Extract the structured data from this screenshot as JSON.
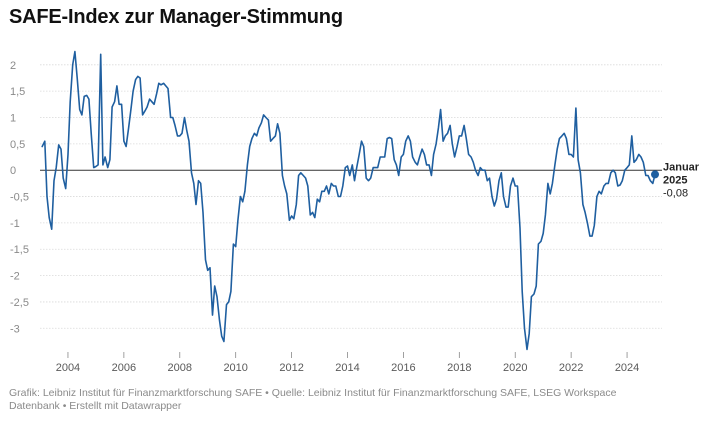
{
  "title": "SAFE-Index zur Manager-Stimmung",
  "footer": "Grafik: Leibniz Institut für Finanzmarktforschung SAFE • Quelle: Leibniz Institut für Finanzmarktforschung SAFE, LSEG Workspace Datenbank • Erstellt mit Datawrapper",
  "colors": {
    "line": "#1f5fa0",
    "grid": "#d9d9d9",
    "zero": "#333333",
    "text_muted": "#8a8a8a"
  },
  "annotation": {
    "month": "Januar",
    "year": "2025",
    "value": "-0,08"
  },
  "chart_data": {
    "type": "line",
    "title": "SAFE-Index zur Manager-Stimmung",
    "xlabel": "",
    "ylabel": "",
    "xlim": [
      2003.0,
      2025.25
    ],
    "ylim": [
      -3.45,
      2.3
    ],
    "x_ticks": [
      2004,
      2006,
      2008,
      2010,
      2012,
      2014,
      2016,
      2018,
      2020,
      2022,
      2024
    ],
    "x_tick_labels": [
      "2004",
      "2006",
      "2008",
      "2010",
      "2012",
      "2014",
      "2016",
      "2018",
      "2020",
      "2022",
      "2024"
    ],
    "y_ticks": [
      2,
      1.5,
      1,
      0.5,
      0,
      -0.5,
      -1,
      -1.5,
      -2,
      -2.5,
      -3
    ],
    "y_tick_labels": [
      "2",
      "1,5",
      "1",
      "0,5",
      "0",
      "-0,5",
      "-1",
      "-1,5",
      "-2",
      "-2,5",
      "-3"
    ],
    "grid": true,
    "series": [
      {
        "points": [
          [
            2003.08,
            0.45
          ],
          [
            2003.17,
            0.55
          ],
          [
            2003.25,
            -0.5
          ],
          [
            2003.33,
            -0.9
          ],
          [
            2003.42,
            -1.12
          ],
          [
            2003.5,
            -0.2
          ],
          [
            2003.58,
            0.05
          ],
          [
            2003.67,
            0.48
          ],
          [
            2003.75,
            0.4
          ],
          [
            2003.83,
            -0.15
          ],
          [
            2003.92,
            -0.35
          ],
          [
            2004.0,
            0.3
          ],
          [
            2004.08,
            1.3
          ],
          [
            2004.17,
            2.0
          ],
          [
            2004.25,
            2.25
          ],
          [
            2004.33,
            1.75
          ],
          [
            2004.42,
            1.15
          ],
          [
            2004.5,
            1.05
          ],
          [
            2004.58,
            1.4
          ],
          [
            2004.67,
            1.42
          ],
          [
            2004.75,
            1.35
          ],
          [
            2004.83,
            0.7
          ],
          [
            2004.92,
            0.05
          ],
          [
            2005.0,
            0.07
          ],
          [
            2005.08,
            0.1
          ],
          [
            2005.17,
            2.2
          ],
          [
            2005.25,
            0.1
          ],
          [
            2005.33,
            0.25
          ],
          [
            2005.42,
            0.05
          ],
          [
            2005.5,
            0.2
          ],
          [
            2005.58,
            1.2
          ],
          [
            2005.67,
            1.3
          ],
          [
            2005.75,
            1.6
          ],
          [
            2005.83,
            1.25
          ],
          [
            2005.92,
            1.25
          ],
          [
            2006.0,
            0.55
          ],
          [
            2006.08,
            0.45
          ],
          [
            2006.17,
            0.8
          ],
          [
            2006.25,
            1.15
          ],
          [
            2006.33,
            1.5
          ],
          [
            2006.42,
            1.72
          ],
          [
            2006.5,
            1.78
          ],
          [
            2006.58,
            1.75
          ],
          [
            2006.67,
            1.05
          ],
          [
            2006.75,
            1.12
          ],
          [
            2006.83,
            1.2
          ],
          [
            2006.92,
            1.35
          ],
          [
            2007.0,
            1.3
          ],
          [
            2007.08,
            1.25
          ],
          [
            2007.17,
            1.45
          ],
          [
            2007.25,
            1.65
          ],
          [
            2007.33,
            1.62
          ],
          [
            2007.42,
            1.65
          ],
          [
            2007.5,
            1.6
          ],
          [
            2007.58,
            1.55
          ],
          [
            2007.67,
            1.0
          ],
          [
            2007.75,
            1.0
          ],
          [
            2007.83,
            0.85
          ],
          [
            2007.92,
            0.65
          ],
          [
            2008.0,
            0.65
          ],
          [
            2008.08,
            0.7
          ],
          [
            2008.17,
            1.0
          ],
          [
            2008.25,
            0.75
          ],
          [
            2008.33,
            0.55
          ],
          [
            2008.42,
            -0.05
          ],
          [
            2008.5,
            -0.25
          ],
          [
            2008.58,
            -0.65
          ],
          [
            2008.67,
            -0.2
          ],
          [
            2008.75,
            -0.25
          ],
          [
            2008.83,
            -0.8
          ],
          [
            2008.92,
            -1.7
          ],
          [
            2009.0,
            -1.9
          ],
          [
            2009.08,
            -1.85
          ],
          [
            2009.17,
            -2.75
          ],
          [
            2009.25,
            -2.2
          ],
          [
            2009.33,
            -2.4
          ],
          [
            2009.42,
            -2.85
          ],
          [
            2009.5,
            -3.15
          ],
          [
            2009.58,
            -3.25
          ],
          [
            2009.67,
            -2.55
          ],
          [
            2009.75,
            -2.5
          ],
          [
            2009.83,
            -2.3
          ],
          [
            2009.92,
            -1.4
          ],
          [
            2010.0,
            -1.45
          ],
          [
            2010.08,
            -0.95
          ],
          [
            2010.17,
            -0.5
          ],
          [
            2010.25,
            -0.6
          ],
          [
            2010.33,
            -0.4
          ],
          [
            2010.42,
            0.1
          ],
          [
            2010.5,
            0.45
          ],
          [
            2010.58,
            0.6
          ],
          [
            2010.67,
            0.7
          ],
          [
            2010.75,
            0.65
          ],
          [
            2010.83,
            0.8
          ],
          [
            2010.92,
            0.9
          ],
          [
            2011.0,
            1.05
          ],
          [
            2011.08,
            1.0
          ],
          [
            2011.17,
            0.95
          ],
          [
            2011.25,
            0.55
          ],
          [
            2011.33,
            0.6
          ],
          [
            2011.42,
            0.65
          ],
          [
            2011.5,
            0.88
          ],
          [
            2011.58,
            0.7
          ],
          [
            2011.67,
            -0.1
          ],
          [
            2011.75,
            -0.3
          ],
          [
            2011.83,
            -0.45
          ],
          [
            2011.92,
            -0.95
          ],
          [
            2012.0,
            -0.87
          ],
          [
            2012.08,
            -0.92
          ],
          [
            2012.17,
            -0.65
          ],
          [
            2012.25,
            -0.1
          ],
          [
            2012.33,
            -0.05
          ],
          [
            2012.42,
            -0.1
          ],
          [
            2012.5,
            -0.15
          ],
          [
            2012.58,
            -0.3
          ],
          [
            2012.67,
            -0.85
          ],
          [
            2012.75,
            -0.8
          ],
          [
            2012.83,
            -0.9
          ],
          [
            2012.92,
            -0.55
          ],
          [
            2013.0,
            -0.6
          ],
          [
            2013.08,
            -0.4
          ],
          [
            2013.17,
            -0.4
          ],
          [
            2013.25,
            -0.3
          ],
          [
            2013.33,
            -0.45
          ],
          [
            2013.42,
            -0.25
          ],
          [
            2013.5,
            -0.3
          ],
          [
            2013.58,
            -0.3
          ],
          [
            2013.67,
            -0.5
          ],
          [
            2013.75,
            -0.5
          ],
          [
            2013.83,
            -0.3
          ],
          [
            2013.92,
            0.05
          ],
          [
            2014.0,
            0.08
          ],
          [
            2014.08,
            -0.1
          ],
          [
            2014.17,
            0.1
          ],
          [
            2014.25,
            -0.2
          ],
          [
            2014.33,
            0.05
          ],
          [
            2014.42,
            0.3
          ],
          [
            2014.5,
            0.55
          ],
          [
            2014.58,
            0.45
          ],
          [
            2014.67,
            -0.15
          ],
          [
            2014.75,
            -0.2
          ],
          [
            2014.83,
            -0.15
          ],
          [
            2014.92,
            0.05
          ],
          [
            2015.0,
            0.05
          ],
          [
            2015.08,
            0.05
          ],
          [
            2015.17,
            0.25
          ],
          [
            2015.25,
            0.25
          ],
          [
            2015.33,
            0.25
          ],
          [
            2015.42,
            0.6
          ],
          [
            2015.5,
            0.62
          ],
          [
            2015.58,
            0.6
          ],
          [
            2015.67,
            0.2
          ],
          [
            2015.75,
            0.1
          ],
          [
            2015.83,
            -0.1
          ],
          [
            2015.92,
            0.25
          ],
          [
            2016.0,
            0.3
          ],
          [
            2016.08,
            0.55
          ],
          [
            2016.17,
            0.65
          ],
          [
            2016.25,
            0.55
          ],
          [
            2016.33,
            0.25
          ],
          [
            2016.42,
            0.15
          ],
          [
            2016.5,
            0.1
          ],
          [
            2016.58,
            0.25
          ],
          [
            2016.67,
            0.4
          ],
          [
            2016.75,
            0.3
          ],
          [
            2016.83,
            0.1
          ],
          [
            2016.92,
            0.1
          ],
          [
            2017.0,
            -0.1
          ],
          [
            2017.08,
            0.3
          ],
          [
            2017.17,
            0.5
          ],
          [
            2017.25,
            0.8
          ],
          [
            2017.33,
            1.15
          ],
          [
            2017.42,
            0.55
          ],
          [
            2017.5,
            0.65
          ],
          [
            2017.58,
            0.7
          ],
          [
            2017.67,
            0.85
          ],
          [
            2017.75,
            0.5
          ],
          [
            2017.83,
            0.25
          ],
          [
            2017.92,
            0.45
          ],
          [
            2018.0,
            0.65
          ],
          [
            2018.08,
            0.65
          ],
          [
            2018.17,
            0.85
          ],
          [
            2018.25,
            0.6
          ],
          [
            2018.33,
            0.3
          ],
          [
            2018.42,
            0.25
          ],
          [
            2018.5,
            0.15
          ],
          [
            2018.58,
            0.0
          ],
          [
            2018.67,
            -0.1
          ],
          [
            2018.75,
            0.05
          ],
          [
            2018.83,
            0.0
          ],
          [
            2018.92,
            0.0
          ],
          [
            2019.0,
            -0.2
          ],
          [
            2019.08,
            -0.15
          ],
          [
            2019.17,
            -0.5
          ],
          [
            2019.25,
            -0.68
          ],
          [
            2019.33,
            -0.55
          ],
          [
            2019.42,
            -0.2
          ],
          [
            2019.5,
            -0.05
          ],
          [
            2019.58,
            -0.5
          ],
          [
            2019.67,
            -0.7
          ],
          [
            2019.75,
            -0.7
          ],
          [
            2019.83,
            -0.3
          ],
          [
            2019.92,
            -0.15
          ],
          [
            2020.0,
            -0.3
          ],
          [
            2020.08,
            -0.3
          ],
          [
            2020.17,
            -1.1
          ],
          [
            2020.25,
            -2.3
          ],
          [
            2020.33,
            -3.0
          ],
          [
            2020.42,
            -3.4
          ],
          [
            2020.5,
            -3.1
          ],
          [
            2020.58,
            -2.4
          ],
          [
            2020.67,
            -2.35
          ],
          [
            2020.75,
            -2.2
          ],
          [
            2020.83,
            -1.4
          ],
          [
            2020.92,
            -1.35
          ],
          [
            2021.0,
            -1.2
          ],
          [
            2021.08,
            -0.85
          ],
          [
            2021.17,
            -0.25
          ],
          [
            2021.25,
            -0.45
          ],
          [
            2021.33,
            -0.25
          ],
          [
            2021.42,
            0.1
          ],
          [
            2021.5,
            0.4
          ],
          [
            2021.58,
            0.6
          ],
          [
            2021.67,
            0.65
          ],
          [
            2021.75,
            0.7
          ],
          [
            2021.83,
            0.6
          ],
          [
            2021.92,
            0.3
          ],
          [
            2022.0,
            0.3
          ],
          [
            2022.08,
            0.25
          ],
          [
            2022.17,
            1.18
          ],
          [
            2022.25,
            0.2
          ],
          [
            2022.33,
            -0.05
          ],
          [
            2022.42,
            -0.65
          ],
          [
            2022.5,
            -0.8
          ],
          [
            2022.58,
            -1.0
          ],
          [
            2022.67,
            -1.25
          ],
          [
            2022.75,
            -1.25
          ],
          [
            2022.83,
            -1.05
          ],
          [
            2022.92,
            -0.5
          ],
          [
            2023.0,
            -0.4
          ],
          [
            2023.08,
            -0.45
          ],
          [
            2023.17,
            -0.3
          ],
          [
            2023.25,
            -0.25
          ],
          [
            2023.33,
            -0.25
          ],
          [
            2023.42,
            -0.05
          ],
          [
            2023.5,
            0.0
          ],
          [
            2023.58,
            -0.05
          ],
          [
            2023.67,
            -0.3
          ],
          [
            2023.75,
            -0.28
          ],
          [
            2023.83,
            -0.2
          ],
          [
            2023.92,
            0.0
          ],
          [
            2024.0,
            0.05
          ],
          [
            2024.08,
            0.1
          ],
          [
            2024.17,
            0.65
          ],
          [
            2024.25,
            0.15
          ],
          [
            2024.33,
            0.2
          ],
          [
            2024.42,
            0.3
          ],
          [
            2024.5,
            0.25
          ],
          [
            2024.58,
            0.15
          ],
          [
            2024.67,
            -0.1
          ],
          [
            2024.75,
            -0.1
          ],
          [
            2024.83,
            -0.2
          ],
          [
            2024.92,
            -0.25
          ],
          [
            2025.0,
            -0.08
          ]
        ]
      }
    ]
  }
}
